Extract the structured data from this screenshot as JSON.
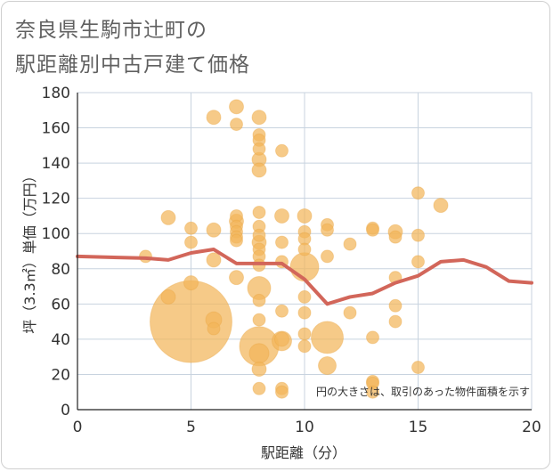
{
  "title_line1": "奈良県生駒市辻町の",
  "title_line2": "駅距離別中古戸建て価格",
  "chart_data": {
    "type": "scatter",
    "title": "奈良県生駒市辻町の駅距離別中古戸建て価格",
    "xlabel": "駅距離（分）",
    "ylabel": "坪（3.3㎡）単価（万円）",
    "xlim": [
      0,
      20
    ],
    "ylim": [
      0,
      180
    ],
    "xticks": [
      0,
      5,
      10,
      15,
      20
    ],
    "yticks": [
      0,
      20,
      40,
      60,
      80,
      100,
      120,
      140,
      160,
      180
    ],
    "grid": true,
    "note": "円の大きさは、取引のあった物件面積を示す",
    "colors": {
      "bubble": "#f2b65a",
      "line": "#d2665a"
    },
    "points": [
      {
        "x": 3,
        "y": 87,
        "s": 7
      },
      {
        "x": 4,
        "y": 109,
        "s": 8
      },
      {
        "x": 4,
        "y": 64,
        "s": 8
      },
      {
        "x": 5,
        "y": 103,
        "s": 7
      },
      {
        "x": 5,
        "y": 95,
        "s": 7
      },
      {
        "x": 5,
        "y": 72,
        "s": 8
      },
      {
        "x": 5,
        "y": 50,
        "s": 46
      },
      {
        "x": 6,
        "y": 166,
        "s": 8
      },
      {
        "x": 6,
        "y": 102,
        "s": 8
      },
      {
        "x": 6,
        "y": 85,
        "s": 8
      },
      {
        "x": 6,
        "y": 51,
        "s": 9
      },
      {
        "x": 6,
        "y": 46,
        "s": 7
      },
      {
        "x": 7,
        "y": 172,
        "s": 8
      },
      {
        "x": 7,
        "y": 162,
        "s": 7
      },
      {
        "x": 7,
        "y": 110,
        "s": 7
      },
      {
        "x": 7,
        "y": 107,
        "s": 8
      },
      {
        "x": 7,
        "y": 104,
        "s": 7
      },
      {
        "x": 7,
        "y": 101,
        "s": 7
      },
      {
        "x": 7,
        "y": 98,
        "s": 7
      },
      {
        "x": 7,
        "y": 96,
        "s": 7
      },
      {
        "x": 7,
        "y": 75,
        "s": 8
      },
      {
        "x": 8,
        "y": 166,
        "s": 8
      },
      {
        "x": 8,
        "y": 156,
        "s": 7
      },
      {
        "x": 8,
        "y": 153,
        "s": 7
      },
      {
        "x": 8,
        "y": 148,
        "s": 7
      },
      {
        "x": 8,
        "y": 142,
        "s": 8
      },
      {
        "x": 8,
        "y": 136,
        "s": 8
      },
      {
        "x": 8,
        "y": 112,
        "s": 7
      },
      {
        "x": 8,
        "y": 104,
        "s": 7
      },
      {
        "x": 8,
        "y": 99,
        "s": 7
      },
      {
        "x": 8,
        "y": 95,
        "s": 8
      },
      {
        "x": 8,
        "y": 91,
        "s": 7
      },
      {
        "x": 8,
        "y": 87,
        "s": 7
      },
      {
        "x": 8,
        "y": 82,
        "s": 7
      },
      {
        "x": 8,
        "y": 69,
        "s": 13
      },
      {
        "x": 8,
        "y": 62,
        "s": 7
      },
      {
        "x": 8,
        "y": 51,
        "s": 7
      },
      {
        "x": 8,
        "y": 36,
        "s": 22
      },
      {
        "x": 8,
        "y": 32,
        "s": 11
      },
      {
        "x": 8,
        "y": 23,
        "s": 8
      },
      {
        "x": 8,
        "y": 12,
        "s": 7
      },
      {
        "x": 9,
        "y": 147,
        "s": 7
      },
      {
        "x": 9,
        "y": 110,
        "s": 8
      },
      {
        "x": 9,
        "y": 95,
        "s": 7
      },
      {
        "x": 9,
        "y": 84,
        "s": 7
      },
      {
        "x": 9,
        "y": 56,
        "s": 7
      },
      {
        "x": 9,
        "y": 40,
        "s": 8
      },
      {
        "x": 9,
        "y": 39,
        "s": 11
      },
      {
        "x": 9,
        "y": 12,
        "s": 7
      },
      {
        "x": 9,
        "y": 10,
        "s": 7
      },
      {
        "x": 10,
        "y": 110,
        "s": 8
      },
      {
        "x": 10,
        "y": 101,
        "s": 7
      },
      {
        "x": 10,
        "y": 97,
        "s": 7
      },
      {
        "x": 10,
        "y": 91,
        "s": 7
      },
      {
        "x": 10,
        "y": 81,
        "s": 16
      },
      {
        "x": 10,
        "y": 64,
        "s": 7
      },
      {
        "x": 10,
        "y": 55,
        "s": 7
      },
      {
        "x": 10,
        "y": 43,
        "s": 7
      },
      {
        "x": 10,
        "y": 36,
        "s": 7
      },
      {
        "x": 11,
        "y": 105,
        "s": 7
      },
      {
        "x": 11,
        "y": 102,
        "s": 7
      },
      {
        "x": 11,
        "y": 87,
        "s": 7
      },
      {
        "x": 11,
        "y": 41,
        "s": 18
      },
      {
        "x": 11,
        "y": 25,
        "s": 10
      },
      {
        "x": 12,
        "y": 94,
        "s": 7
      },
      {
        "x": 12,
        "y": 55,
        "s": 7
      },
      {
        "x": 13,
        "y": 103,
        "s": 7
      },
      {
        "x": 13,
        "y": 102,
        "s": 7
      },
      {
        "x": 13,
        "y": 41,
        "s": 7
      },
      {
        "x": 13,
        "y": 16,
        "s": 7
      },
      {
        "x": 13,
        "y": 15,
        "s": 7
      },
      {
        "x": 13,
        "y": 10,
        "s": 7
      },
      {
        "x": 14,
        "y": 101,
        "s": 8
      },
      {
        "x": 14,
        "y": 98,
        "s": 7
      },
      {
        "x": 14,
        "y": 75,
        "s": 7
      },
      {
        "x": 14,
        "y": 59,
        "s": 7
      },
      {
        "x": 14,
        "y": 50,
        "s": 7
      },
      {
        "x": 15,
        "y": 123,
        "s": 7
      },
      {
        "x": 15,
        "y": 99,
        "s": 7
      },
      {
        "x": 15,
        "y": 84,
        "s": 7
      },
      {
        "x": 15,
        "y": 24,
        "s": 7
      },
      {
        "x": 16,
        "y": 116,
        "s": 8
      }
    ],
    "trend": {
      "x": [
        0,
        3,
        4,
        5,
        6,
        7,
        8,
        9,
        10,
        11,
        12,
        13,
        14,
        15,
        16,
        17,
        18,
        19,
        20
      ],
      "y": [
        87,
        86,
        85,
        89,
        91,
        83,
        83,
        83,
        74,
        60,
        64,
        66,
        72,
        76,
        84,
        85,
        81,
        73,
        72
      ]
    }
  }
}
